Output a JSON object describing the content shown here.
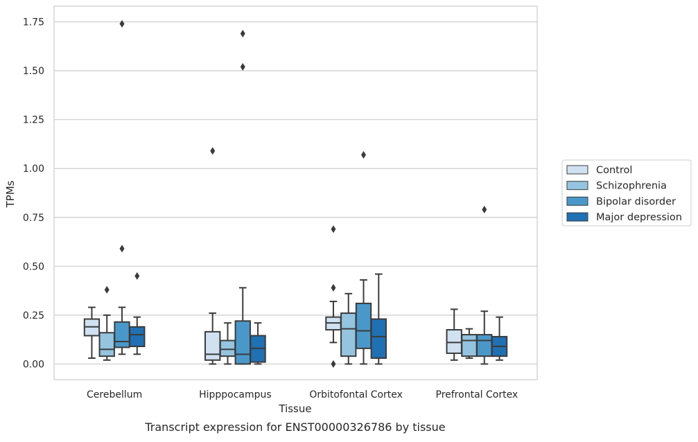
{
  "chart_data": {
    "type": "box",
    "caption": "Transcript expression for ENST00000326786 by tissue",
    "xlabel": "Tissue",
    "ylabel": "TPMs",
    "ylim": [
      -0.08,
      1.83
    ],
    "yticks": [
      0.0,
      0.25,
      0.5,
      0.75,
      1.0,
      1.25,
      1.5,
      1.75
    ],
    "ytick_labels": [
      "0.00",
      "0.25",
      "0.50",
      "0.75",
      "1.00",
      "1.25",
      "1.50",
      "1.75"
    ],
    "grid": "horizontal",
    "legend_position": "right",
    "categories": [
      "Cerebellum",
      "Hipppocampus",
      "Orbitofontal Cortex",
      "Prefrontal Cortex"
    ],
    "series": [
      {
        "name": "Control",
        "color": "#d0e1f2",
        "boxes": [
          {
            "whisker_low": 0.03,
            "q1": 0.145,
            "median": 0.19,
            "q3": 0.23,
            "whisker_high": 0.29,
            "outliers": []
          },
          {
            "whisker_low": 0.0,
            "q1": 0.02,
            "median": 0.05,
            "q3": 0.165,
            "whisker_high": 0.26,
            "outliers": [
              1.09
            ]
          },
          {
            "whisker_low": 0.11,
            "q1": 0.175,
            "median": 0.21,
            "q3": 0.24,
            "whisker_high": 0.32,
            "outliers": [
              0.0,
              0.39,
              0.69
            ]
          },
          {
            "whisker_low": 0.02,
            "q1": 0.055,
            "median": 0.11,
            "q3": 0.175,
            "whisker_high": 0.28,
            "outliers": []
          }
        ]
      },
      {
        "name": "Schizophrenia",
        "color": "#94c4df",
        "boxes": [
          {
            "whisker_low": 0.02,
            "q1": 0.04,
            "median": 0.075,
            "q3": 0.16,
            "whisker_high": 0.25,
            "outliers": [
              0.38
            ]
          },
          {
            "whisker_low": 0.0,
            "q1": 0.04,
            "median": 0.075,
            "q3": 0.12,
            "whisker_high": 0.21,
            "outliers": []
          },
          {
            "whisker_low": 0.0,
            "q1": 0.04,
            "median": 0.18,
            "q3": 0.26,
            "whisker_high": 0.36,
            "outliers": []
          },
          {
            "whisker_low": 0.03,
            "q1": 0.04,
            "median": 0.12,
            "q3": 0.15,
            "whisker_high": 0.18,
            "outliers": []
          }
        ]
      },
      {
        "name": "Bipolar disorder",
        "color": "#4a98c9",
        "boxes": [
          {
            "whisker_low": 0.05,
            "q1": 0.085,
            "median": 0.115,
            "q3": 0.215,
            "whisker_high": 0.29,
            "outliers": [
              0.59,
              1.74
            ]
          },
          {
            "whisker_low": 0.0,
            "q1": 0.0,
            "median": 0.05,
            "q3": 0.22,
            "whisker_high": 0.39,
            "outliers": [
              1.52,
              1.69
            ]
          },
          {
            "whisker_low": 0.0,
            "q1": 0.08,
            "median": 0.17,
            "q3": 0.31,
            "whisker_high": 0.43,
            "outliers": [
              1.07
            ]
          },
          {
            "whisker_low": 0.0,
            "q1": 0.04,
            "median": 0.12,
            "q3": 0.15,
            "whisker_high": 0.27,
            "outliers": [
              0.79
            ]
          }
        ]
      },
      {
        "name": "Major depression",
        "color": "#2070b4",
        "boxes": [
          {
            "whisker_low": 0.05,
            "q1": 0.09,
            "median": 0.15,
            "q3": 0.19,
            "whisker_high": 0.24,
            "outliers": [
              0.45
            ]
          },
          {
            "whisker_low": 0.0,
            "q1": 0.01,
            "median": 0.08,
            "q3": 0.145,
            "whisker_high": 0.21,
            "outliers": []
          },
          {
            "whisker_low": 0.0,
            "q1": 0.03,
            "median": 0.14,
            "q3": 0.23,
            "whisker_high": 0.46,
            "outliers": []
          },
          {
            "whisker_low": 0.02,
            "q1": 0.04,
            "median": 0.09,
            "q3": 0.14,
            "whisker_high": 0.24,
            "outliers": []
          }
        ]
      }
    ]
  }
}
